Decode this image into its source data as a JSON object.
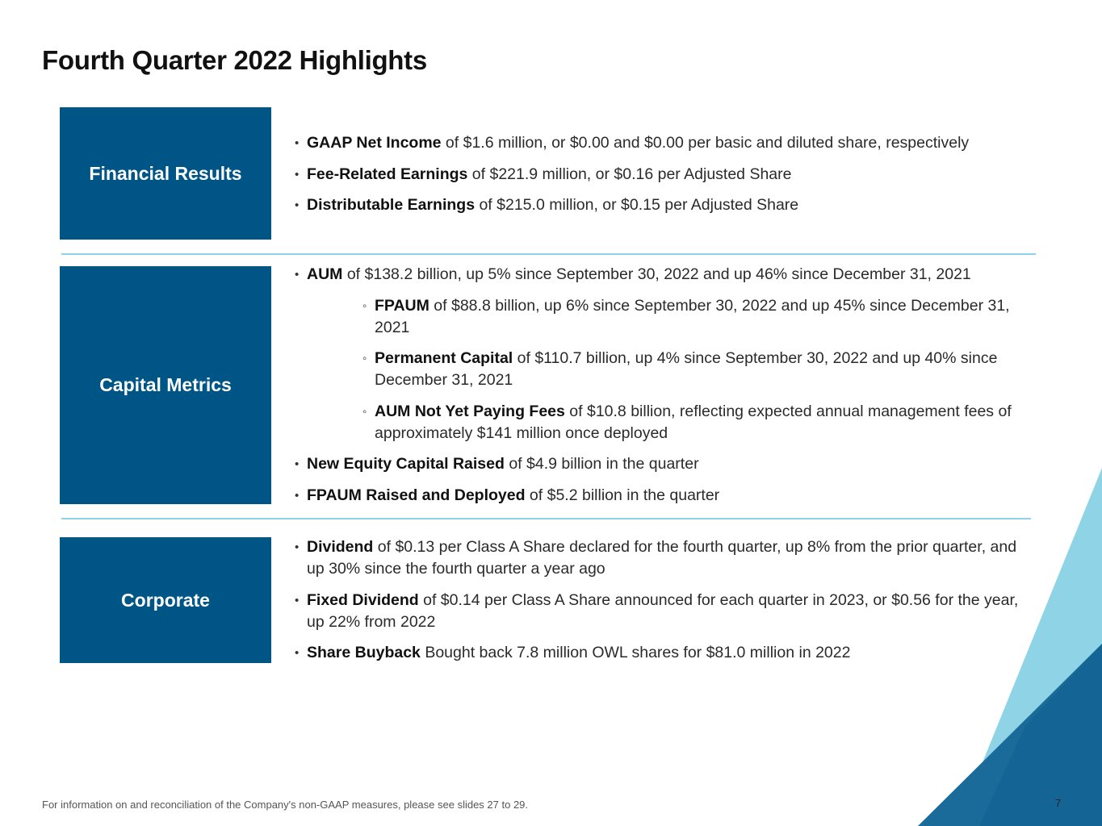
{
  "title": "Fourth Quarter 2022 Highlights",
  "sections": {
    "financial": {
      "label": "Financial Results",
      "items": [
        {
          "bold": "GAAP Net Income",
          "text": " of $1.6 million, or $0.00 and $0.00 per basic and diluted share, respectively"
        },
        {
          "bold": "Fee-Related Earnings",
          "text": " of $221.9 million, or $0.16 per Adjusted Share"
        },
        {
          "bold": "Distributable Earnings",
          "text": " of $215.0 million, or $0.15 per Adjusted Share"
        }
      ]
    },
    "capital": {
      "label": "Capital Metrics",
      "items": [
        {
          "bold": "AUM",
          "text": " of $138.2 billion, up 5% since September 30, 2022 and up 46% since December 31, 2021"
        },
        {
          "bold": "FPAUM",
          "text": " of $88.8 billion, up 6% since September 30,  2022 and up 45% since December 31, 2021"
        },
        {
          "bold": "Permanent Capital",
          "text": " of $110.7 billion, up 4% since September 30,  2022 and up 40% since December 31, 2021"
        },
        {
          "bold": "AUM Not Yet Paying Fees",
          "text": " of $10.8 billion, reflecting expected annual management fees of  approximately $141 million once deployed"
        },
        {
          "bold": "New Equity Capital Raised",
          "text": " of $4.9 billion in the quarter"
        },
        {
          "bold": "FPAUM Raised and Deployed",
          "text": " of $5.2 billion in the quarter"
        }
      ]
    },
    "corporate": {
      "label": "Corporate",
      "items": [
        {
          "bold": "Dividend",
          "text": " of $0.13 per Class A Share declared for the fourth quarter, up 8% from the prior quarter, and up 30% since the fourth quarter a year ago"
        },
        {
          "bold": "Fixed Dividend",
          "text": " of $0.14 per Class A Share announced for each quarter in 2023, or $0.56 for the year, up 22% from 2022"
        },
        {
          "bold": "Share Buyback",
          "text": " Bought back 7.8 million OWL shares for $81.0 million in 2022"
        }
      ]
    }
  },
  "footnote": "For information on and reconciliation of the Company's non-GAAP measures, please see slides 27 to 29.",
  "page_number": "7",
  "colors": {
    "box": "#005587",
    "divider": "#8fd3e6",
    "deco_light": "#8fd3e6",
    "deco_dark": "#1a6a9a"
  }
}
